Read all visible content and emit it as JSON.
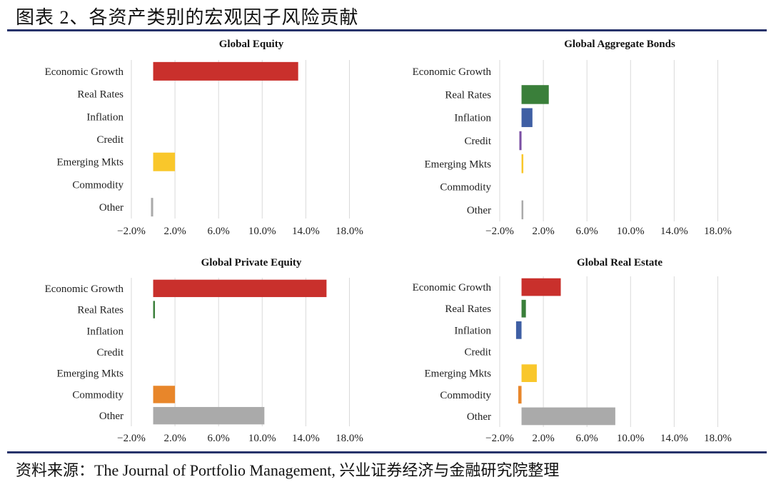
{
  "figure": {
    "title": "图表 2、各资产类别的宏观因子风险贡献",
    "source": "资料来源：The Journal of Portfolio Management, 兴业证券经济与金融研究院整理"
  },
  "colors": {
    "Economic Growth": "#c9302c",
    "Real Rates": "#3a7f3a",
    "Inflation": "#3f5fa4",
    "Credit": "#7b4fa3",
    "Emerging Mkts": "#f9c72b",
    "Commodity": "#e8862a",
    "Other": "#aaaaaa",
    "grid": "#d9d9d9",
    "rule": "#27336b"
  },
  "chart_data": [
    {
      "type": "bar",
      "orientation": "horizontal",
      "title": "Global Equity",
      "categories": [
        "Economic Growth",
        "Real Rates",
        "Inflation",
        "Credit",
        "Emerging Mkts",
        "Commodity",
        "Other"
      ],
      "values": [
        13.3,
        0,
        0,
        0,
        2.0,
        0,
        -0.2
      ],
      "xlim": [
        -2.0,
        20.0
      ],
      "xticks": [
        "−2.0%",
        "2.0%",
        "6.0%",
        "10.0%",
        "14.0%",
        "18.0%"
      ],
      "xtick_values": [
        -2.0,
        2.0,
        6.0,
        10.0,
        14.0,
        18.0
      ],
      "grid": true
    },
    {
      "type": "bar",
      "orientation": "horizontal",
      "title": "Global Aggregate Bonds",
      "categories": [
        "Economic Growth",
        "Real Rates",
        "Inflation",
        "Credit",
        "Emerging Mkts",
        "Commodity",
        "Other"
      ],
      "values": [
        0,
        2.5,
        1.0,
        -0.2,
        0.05,
        0,
        0.1
      ],
      "xlim": [
        -2.0,
        20.0
      ],
      "xticks": [
        "−2.0%",
        "2.0%",
        "6.0%",
        "10.0%",
        "14.0%",
        "18.0%"
      ],
      "xtick_values": [
        -2.0,
        2.0,
        6.0,
        10.0,
        14.0,
        18.0
      ],
      "grid": true
    },
    {
      "type": "bar",
      "orientation": "horizontal",
      "title": "Global Private Equity",
      "categories": [
        "Economic Growth",
        "Real Rates",
        "Inflation",
        "Credit",
        "Emerging Mkts",
        "Commodity",
        "Other"
      ],
      "values": [
        15.9,
        0.1,
        0,
        0,
        0,
        2.0,
        10.2
      ],
      "xlim": [
        -2.0,
        20.0
      ],
      "xticks": [
        "−2.0%",
        "2.0%",
        "6.0%",
        "10.0%",
        "14.0%",
        "18.0%"
      ],
      "xtick_values": [
        -2.0,
        2.0,
        6.0,
        10.0,
        14.0,
        18.0
      ],
      "grid": true
    },
    {
      "type": "bar",
      "orientation": "horizontal",
      "title": "Global Real Estate",
      "categories": [
        "Economic Growth",
        "Real Rates",
        "Inflation",
        "Credit",
        "Emerging Mkts",
        "Commodity",
        "Other"
      ],
      "values": [
        3.6,
        0.4,
        -0.5,
        0,
        1.4,
        -0.3,
        8.6
      ],
      "xlim": [
        -2.0,
        20.0
      ],
      "xticks": [
        "−2.0%",
        "2.0%",
        "6.0%",
        "10.0%",
        "14.0%",
        "18.0%"
      ],
      "xtick_values": [
        -2.0,
        2.0,
        6.0,
        10.0,
        14.0,
        18.0
      ],
      "grid": true
    }
  ]
}
